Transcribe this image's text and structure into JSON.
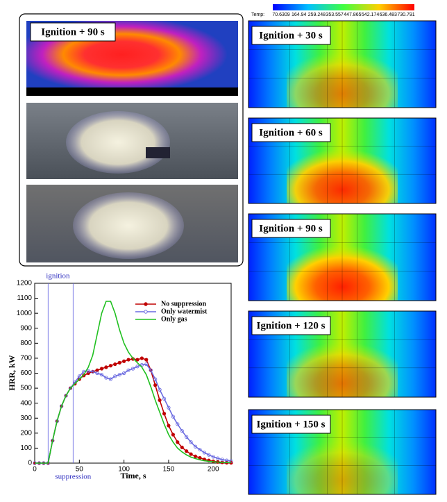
{
  "chart_data": {
    "type": "line",
    "x_label": "Time, s",
    "y_label": "HRR, kW",
    "x": [
      0,
      5,
      10,
      15,
      20,
      25,
      30,
      35,
      40,
      45,
      50,
      55,
      60,
      65,
      70,
      75,
      80,
      85,
      90,
      95,
      100,
      105,
      110,
      115,
      120,
      125,
      130,
      135,
      140,
      145,
      150,
      155,
      160,
      165,
      170,
      175,
      180,
      185,
      190,
      195,
      200,
      205,
      210,
      215,
      220
    ],
    "series": [
      {
        "name": "No suppression",
        "color": "#c00000",
        "marker": "filled",
        "values": [
          0,
          0,
          0,
          0,
          150,
          280,
          380,
          450,
          500,
          530,
          560,
          585,
          600,
          610,
          620,
          630,
          640,
          650,
          660,
          670,
          680,
          690,
          695,
          690,
          700,
          690,
          620,
          520,
          420,
          330,
          250,
          190,
          140,
          105,
          80,
          60,
          45,
          35,
          25,
          18,
          12,
          8,
          5,
          3,
          2
        ]
      },
      {
        "name": "Only watermist",
        "color": "#6a6ae0",
        "marker": "open",
        "values": [
          0,
          0,
          0,
          0,
          150,
          280,
          380,
          450,
          500,
          540,
          580,
          610,
          615,
          610,
          600,
          590,
          570,
          560,
          580,
          590,
          600,
          620,
          630,
          645,
          655,
          660,
          620,
          560,
          490,
          430,
          370,
          310,
          260,
          215,
          175,
          140,
          110,
          90,
          70,
          55,
          42,
          32,
          24,
          18,
          14
        ]
      },
      {
        "name": "Only gas",
        "color": "#20c020",
        "marker": "none",
        "values": [
          0,
          0,
          0,
          0,
          150,
          280,
          380,
          450,
          500,
          530,
          560,
          590,
          640,
          720,
          860,
          1000,
          1080,
          1080,
          1000,
          890,
          800,
          740,
          700,
          670,
          640,
          590,
          510,
          420,
          340,
          260,
          190,
          140,
          100,
          75,
          55,
          40,
          30,
          22,
          16,
          12,
          9,
          7,
          5,
          4,
          3
        ]
      }
    ],
    "annotations": [
      {
        "text": "ignition",
        "x": 15
      },
      {
        "text": "suppression",
        "x": 43
      }
    ],
    "xlim": [
      0,
      220
    ],
    "xticks": [
      0,
      50,
      100,
      150,
      200
    ],
    "ylim": [
      0,
      1200
    ],
    "yticks": [
      0,
      100,
      200,
      300,
      400,
      500,
      600,
      700,
      800,
      900,
      1000,
      1100,
      1200
    ]
  },
  "photo_label": "Ignition + 90 s",
  "colorbar": {
    "title": "Temp:",
    "ticks": [
      70.6309,
      164.94,
      259.248,
      353.557,
      447.865,
      542.174,
      636.483,
      730.791
    ]
  },
  "simulation_labels": [
    "Ignition + 30 s",
    "Ignition + 60 s",
    "Ignition + 90 s",
    "Ignition + 120 s",
    "Ignition + 150 s"
  ]
}
